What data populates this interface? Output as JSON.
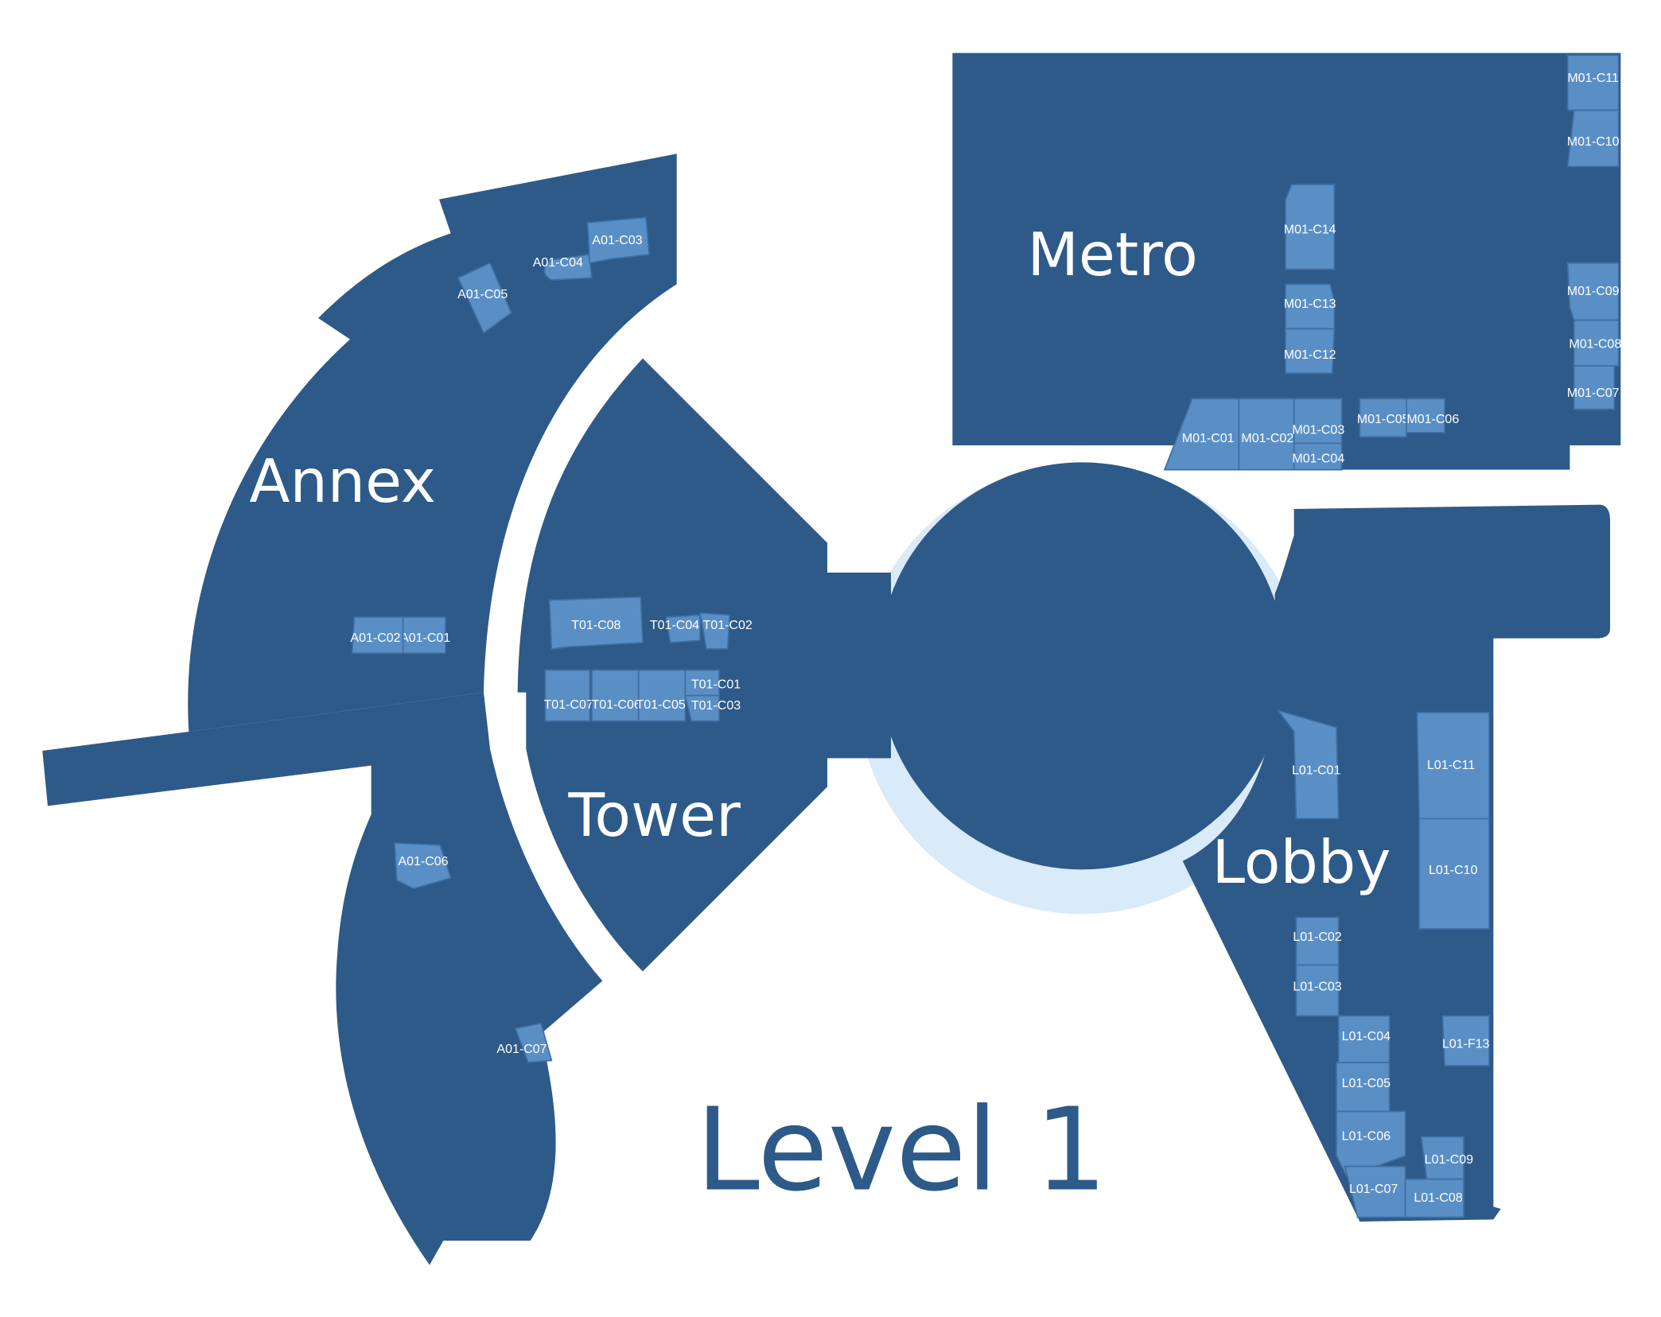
{
  "colors": {
    "building": "#2d5a88",
    "room": "#5a8fc6",
    "room_stroke": "#3f6fa3",
    "ring": "#d9eaf8",
    "background": "#ffffff"
  },
  "level": {
    "title": "Level 1"
  },
  "buildings": {
    "annex": "Annex",
    "tower": "Tower",
    "metro": "Metro",
    "lobby": "Lobby"
  },
  "rooms": {
    "annex": [
      "A01-C01",
      "A01-C02",
      "A01-C03",
      "A01-C04",
      "A01-C05",
      "A01-C06",
      "A01-C07"
    ],
    "tower": [
      "T01-C01",
      "T01-C02",
      "T01-C03",
      "T01-C04",
      "T01-C05",
      "T01-C06",
      "T01-C07",
      "T01-C08"
    ],
    "metro": [
      "M01-C01",
      "M01-C02",
      "M01-C03",
      "M01-C04",
      "M01-C05",
      "M01-C06",
      "M01-C07",
      "M01-C08",
      "M01-C09",
      "M01-C10",
      "M01-C11",
      "M01-C12",
      "M01-C13",
      "M01-C14"
    ],
    "lobby": [
      "L01-C01",
      "L01-C02",
      "L01-C03",
      "L01-C04",
      "L01-C05",
      "L01-C06",
      "L01-C07",
      "L01-C08",
      "L01-C09",
      "L01-C10",
      "L01-C11",
      "L01-F13"
    ]
  }
}
